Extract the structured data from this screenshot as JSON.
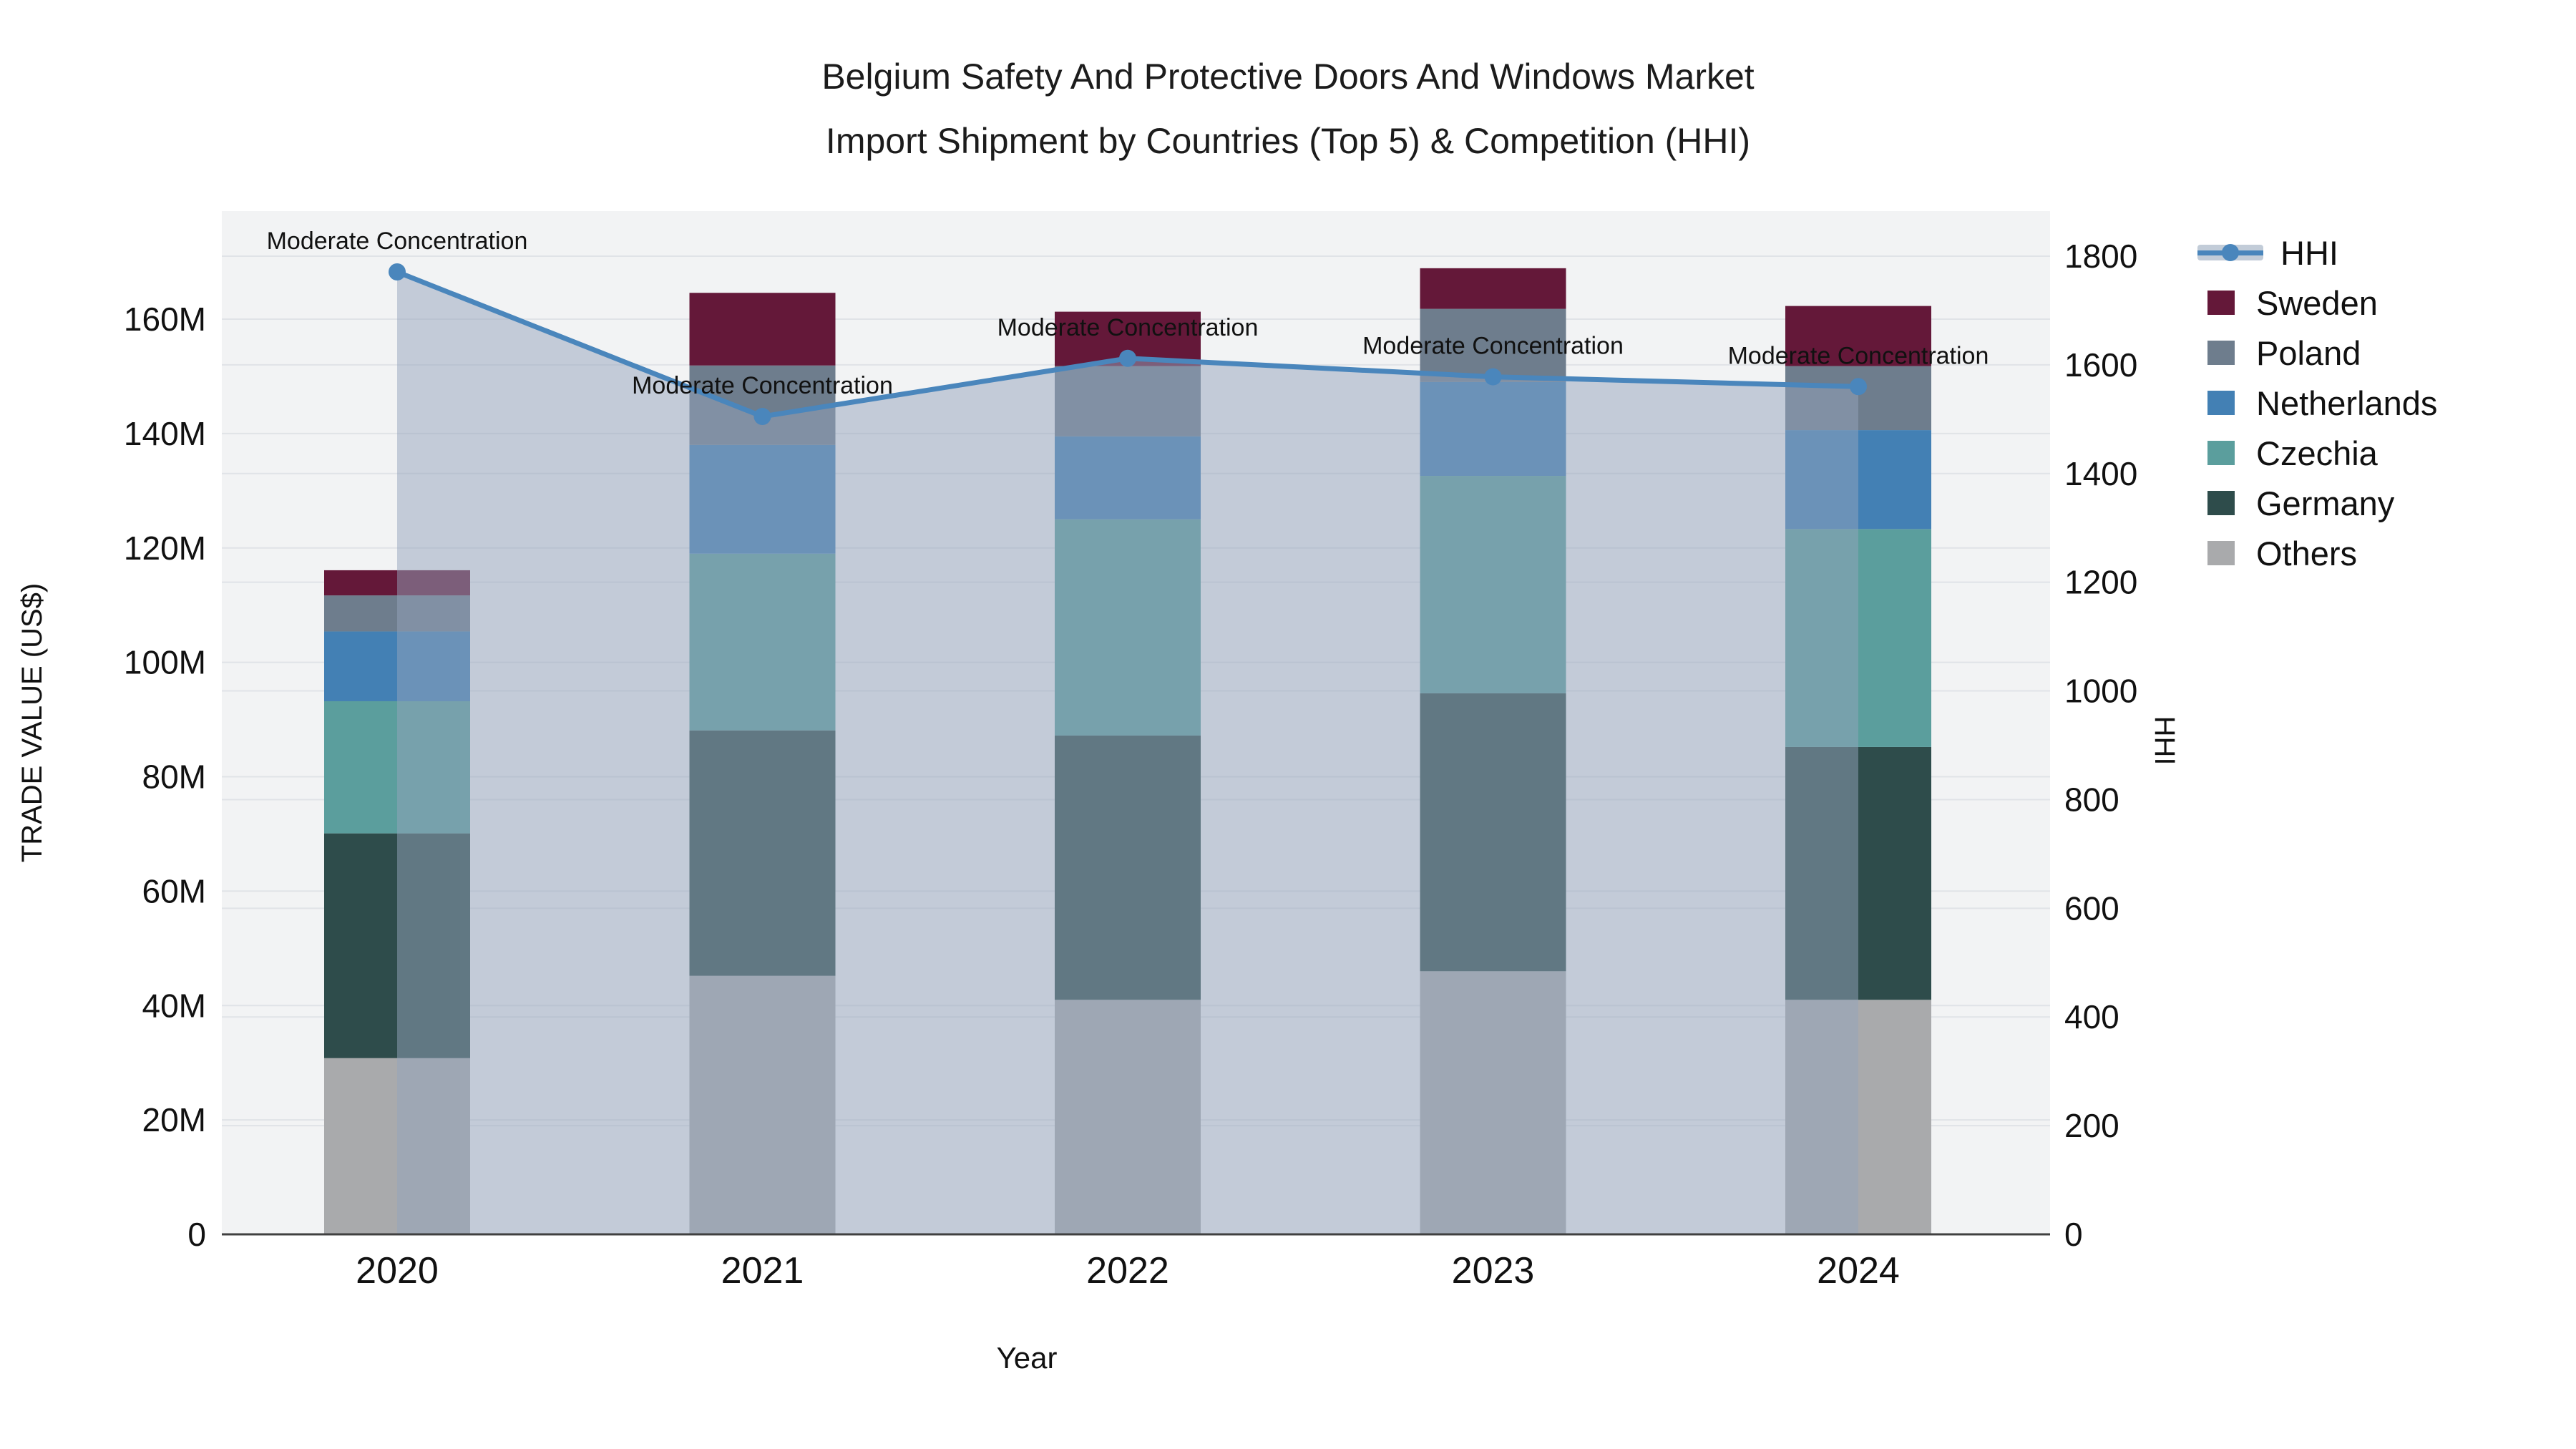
{
  "title": {
    "line1": "Belgium Safety And Protective Doors And Windows Market",
    "line2": "Import Shipment by Countries (Top 5) & Competition (HHI)"
  },
  "chart_data": {
    "type": "bar-line-combo",
    "title": "Belgium Safety And Protective Doors And Windows Market Import Shipment by Countries (Top 5) & Competition (HHI)",
    "xlabel": "Year",
    "ylabel_left": "TRADE VALUE (US$)",
    "ylabel_right": "HHI",
    "categories": [
      "2020",
      "2021",
      "2022",
      "2023",
      "2024"
    ],
    "values_unit": "M US$ (trade value, left axis)",
    "stack_note": "series listed bottom-to-top of stacked bars",
    "series": [
      {
        "name": "Others",
        "color": "#a9aaac",
        "values": [
          30.8,
          45.2,
          41.0,
          46.0,
          41.0
        ]
      },
      {
        "name": "Germany",
        "color": "#2e4c4b",
        "values": [
          39.3,
          42.9,
          46.2,
          48.6,
          44.2
        ]
      },
      {
        "name": "Czechia",
        "color": "#5b9e9d",
        "values": [
          23.1,
          30.9,
          37.8,
          38.0,
          38.1
        ]
      },
      {
        "name": "Netherlands",
        "color": "#4380b4",
        "values": [
          12.2,
          19.0,
          14.5,
          16.4,
          17.3
        ]
      },
      {
        "name": "Poland",
        "color": "#6e7d8d",
        "values": [
          6.3,
          13.9,
          12.3,
          12.8,
          11.2
        ]
      },
      {
        "name": "Sweden",
        "color": "#641839",
        "values": [
          4.4,
          12.7,
          9.5,
          7.1,
          10.5
        ]
      }
    ],
    "bar_totals": [
      116.1,
      164.6,
      161.3,
      168.9,
      162.3
    ],
    "hhi": {
      "name": "HHI",
      "line_color": "#4a86bc",
      "area_fill": "rgba(148,164,187,0.5)",
      "values": [
        1771,
        1505,
        1612,
        1578,
        1560
      ],
      "annotations": [
        "Moderate Concentration",
        "Moderate Concentration",
        "Moderate Concentration",
        "Moderate Concentration",
        "Moderate Concentration"
      ]
    },
    "y_left": {
      "tick_values": [
        0,
        20,
        40,
        60,
        80,
        100,
        120,
        140,
        160
      ],
      "tick_labels": [
        "0",
        "20M",
        "40M",
        "60M",
        "80M",
        "100M",
        "120M",
        "140M",
        "160M"
      ],
      "max": 160
    },
    "y_right": {
      "tick_values": [
        0,
        200,
        400,
        600,
        800,
        1000,
        1200,
        1400,
        1600,
        1800
      ],
      "tick_labels": [
        "0",
        "200",
        "400",
        "600",
        "800",
        "1000",
        "1200",
        "1400",
        "1600",
        "1800"
      ],
      "max": 1800
    },
    "grid": true,
    "legend_position": "right",
    "plot_background": "#f2f3f4",
    "grid_color": "#e0e3e7",
    "axis_line_color": "#404040"
  },
  "legend": {
    "items": [
      {
        "label": "HHI",
        "type": "line",
        "color": "#4a86bc",
        "band_color": "#c2ccd8"
      },
      {
        "label": "Sweden",
        "type": "square",
        "color": "#641839"
      },
      {
        "label": "Poland",
        "type": "square",
        "color": "#6e7d8d"
      },
      {
        "label": "Netherlands",
        "type": "square",
        "color": "#4380b4"
      },
      {
        "label": "Czechia",
        "type": "square",
        "color": "#5b9e9d"
      },
      {
        "label": "Germany",
        "type": "square",
        "color": "#2e4c4b"
      },
      {
        "label": "Others",
        "type": "square",
        "color": "#a9aaac"
      }
    ]
  }
}
